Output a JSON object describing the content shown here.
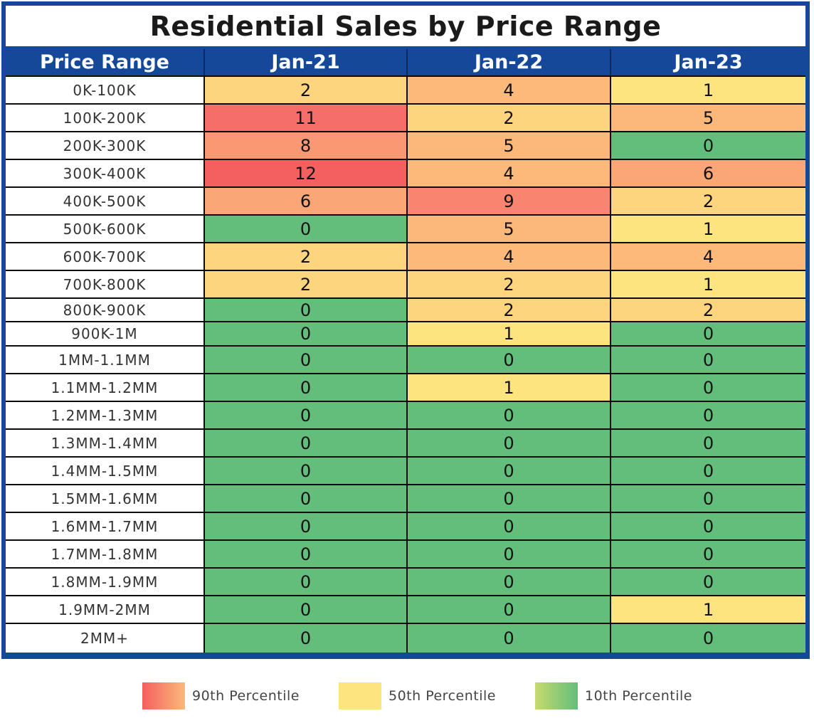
{
  "chart_data": {
    "type": "heatmap",
    "title": "Residential Sales by Price Range",
    "row_header": "Price Range",
    "columns": [
      "Jan-21",
      "Jan-22",
      "Jan-23"
    ],
    "rows": [
      {
        "label": "0K-100K",
        "values": [
          2,
          4,
          1
        ]
      },
      {
        "label": "100K-200K",
        "values": [
          11,
          2,
          5
        ]
      },
      {
        "label": "200K-300K",
        "values": [
          8,
          5,
          0
        ]
      },
      {
        "label": "300K-400K",
        "values": [
          12,
          4,
          6
        ]
      },
      {
        "label": "400K-500K",
        "values": [
          6,
          9,
          2
        ]
      },
      {
        "label": "500K-600K",
        "values": [
          0,
          5,
          1
        ]
      },
      {
        "label": "600K-700K",
        "values": [
          2,
          4,
          4
        ]
      },
      {
        "label": "700K-800K",
        "values": [
          2,
          2,
          1
        ]
      },
      {
        "label": "800K-900K",
        "values": [
          0,
          2,
          2
        ]
      },
      {
        "label": "900K-1M",
        "values": [
          0,
          1,
          0
        ]
      },
      {
        "label": "1MM-1.1MM",
        "values": [
          0,
          0,
          0
        ]
      },
      {
        "label": "1.1MM-1.2MM",
        "values": [
          0,
          1,
          0
        ]
      },
      {
        "label": "1.2MM-1.3MM",
        "values": [
          0,
          0,
          0
        ]
      },
      {
        "label": "1.3MM-1.4MM",
        "values": [
          0,
          0,
          0
        ]
      },
      {
        "label": "1.4MM-1.5MM",
        "values": [
          0,
          0,
          0
        ]
      },
      {
        "label": "1.5MM-1.6MM",
        "values": [
          0,
          0,
          0
        ]
      },
      {
        "label": "1.6MM-1.7MM",
        "values": [
          0,
          0,
          0
        ]
      },
      {
        "label": "1.7MM-1.8MM",
        "values": [
          0,
          0,
          0
        ]
      },
      {
        "label": "1.8MM-1.9MM",
        "values": [
          0,
          0,
          0
        ]
      },
      {
        "label": "1.9MM-2MM",
        "values": [
          0,
          0,
          1
        ]
      },
      {
        "label": "2MM+",
        "values": [
          0,
          0,
          0
        ]
      }
    ],
    "legend": [
      {
        "label": "90th Percentile",
        "color_from": "#f4605f",
        "color_to": "#fab97a"
      },
      {
        "label": "50th Percentile",
        "color_from": "#fde47f",
        "color_to": "#fde47f"
      },
      {
        "label": "10th Percentile",
        "color_from": "#c5da6e",
        "color_to": "#63be7b"
      }
    ]
  },
  "colors": {
    "frame": "#16489a",
    "cell_by_value": {
      "0": "#63be7b",
      "1": "#fde47f",
      "2": "#fdd57f",
      "4": "#fcb97a",
      "5": "#fcb87a",
      "6": "#fba676",
      "8": "#fa9873",
      "9": "#f98570",
      "11": "#f56e69",
      "12": "#f4605f"
    }
  }
}
